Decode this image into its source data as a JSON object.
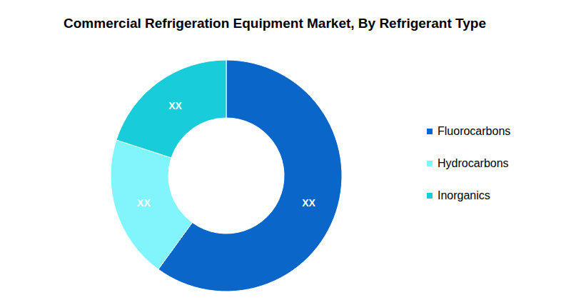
{
  "chart_data": {
    "type": "pie",
    "title": "Commercial Refrigeration Equipment Market, By Refrigerant Type",
    "categories": [
      "Fluorocarbons",
      "Hydrocarbons",
      "Inorganics"
    ],
    "values": [
      60,
      20,
      20
    ],
    "value_labels": [
      "XX",
      "XX",
      "XX"
    ],
    "colors": [
      "#0a66c8",
      "#80f6fc",
      "#18cdd9"
    ],
    "data_labels": true,
    "legend": "right"
  }
}
